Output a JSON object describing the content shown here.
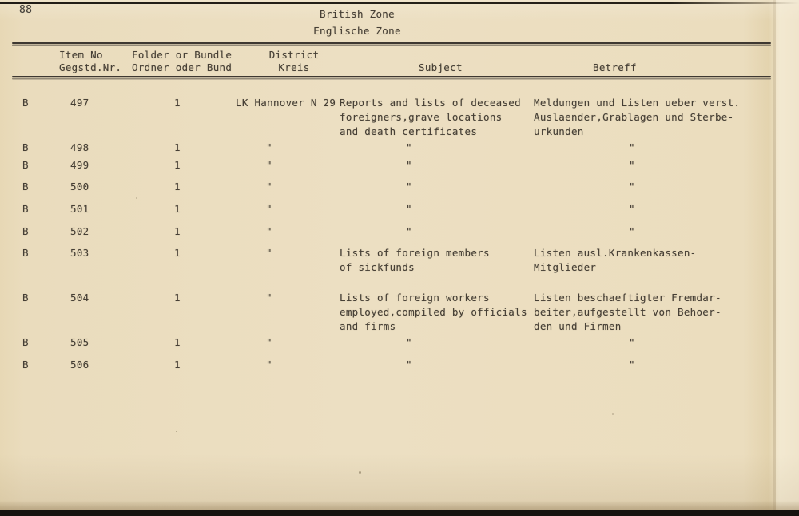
{
  "page": {
    "page_number": "88",
    "title_en": "British Zone",
    "title_de": "Englische Zone"
  },
  "colors": {
    "paper": "#ebdec1",
    "ink": "#463f35",
    "scan_edge": "#16130f"
  },
  "table": {
    "headers": {
      "item_no": "Item No\nGegstd.Nr.",
      "folder": "Folder or Bundle\nOrdner oder Bund",
      "district": "District\nKreis",
      "subject": "Subject",
      "betreff": "Betreff"
    },
    "rows": [
      {
        "zone": "B",
        "item": "497",
        "folder": "1",
        "district": "LK Hannover N 29",
        "subject": "Reports and lists of deceased\nforeigners,grave locations\nand death certificates",
        "betreff": "Meldungen und Listen ueber verst.\nAuslaender,Grablagen und Sterbe-\nurkunden"
      },
      {
        "zone": "B",
        "item": "498",
        "folder": "1",
        "district": "\"",
        "subject": "\"",
        "betreff": "\""
      },
      {
        "zone": "B",
        "item": "499",
        "folder": "1",
        "district": "\"",
        "subject": "\"",
        "betreff": "\""
      },
      {
        "zone": "B",
        "item": "500",
        "folder": "1",
        "district": "\"",
        "subject": "\"",
        "betreff": "\""
      },
      {
        "zone": "B",
        "item": "501",
        "folder": "1",
        "district": "\"",
        "subject": "\"",
        "betreff": "\""
      },
      {
        "zone": "B",
        "item": "502",
        "folder": "1",
        "district": "\"",
        "subject": "\"",
        "betreff": "\""
      },
      {
        "zone": "B",
        "item": "503",
        "folder": "1",
        "district": "\"",
        "subject": "Lists of foreign members\nof sickfunds",
        "betreff": "Listen ausl.Krankenkassen-\nMitglieder"
      },
      {
        "zone": "B",
        "item": "504",
        "folder": "1",
        "district": "\"",
        "subject": "Lists of foreign workers\nemployed,compiled by officials\nand firms",
        "betreff": "Listen beschaeftigter Fremdar-\nbeiter,aufgestellt von Behoer-\nden und Firmen"
      },
      {
        "zone": "B",
        "item": "505",
        "folder": "1",
        "district": "\"",
        "subject": "\"",
        "betreff": "\""
      },
      {
        "zone": "B",
        "item": "506",
        "folder": "1",
        "district": "\"",
        "subject": "\"",
        "betreff": "\""
      }
    ]
  }
}
